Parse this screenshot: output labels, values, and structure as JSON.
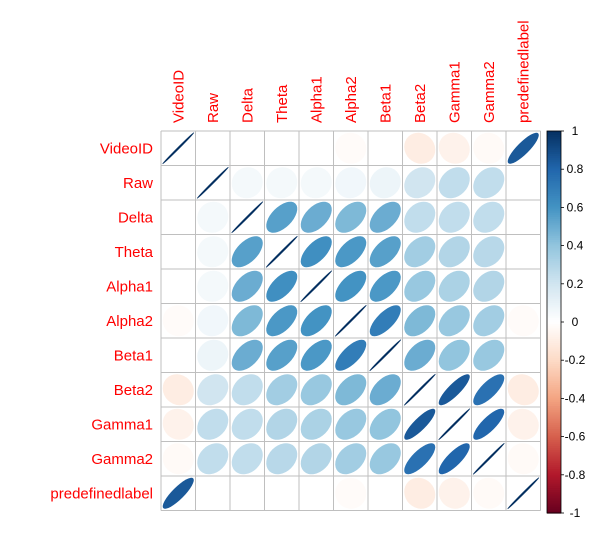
{
  "chart_data": {
    "type": "heatmap",
    "title": "",
    "variables": [
      "VideoID",
      "Raw",
      "Delta",
      "Theta",
      "Alpha1",
      "Alpha2",
      "Beta1",
      "Beta2",
      "Gamma1",
      "Gamma2",
      "predefinedlabel"
    ],
    "matrix": [
      [
        1.0,
        0.0,
        0.0,
        0.0,
        0.0,
        -0.02,
        0.0,
        -0.1,
        -0.07,
        -0.03,
        0.85
      ],
      [
        0.0,
        1.0,
        0.05,
        0.05,
        0.05,
        0.06,
        0.08,
        0.2,
        0.25,
        0.25,
        0.0
      ],
      [
        0.0,
        0.05,
        1.0,
        0.55,
        0.5,
        0.45,
        0.5,
        0.25,
        0.25,
        0.25,
        0.0
      ],
      [
        0.0,
        0.05,
        0.55,
        1.0,
        0.62,
        0.58,
        0.55,
        0.35,
        0.3,
        0.28,
        0.0
      ],
      [
        0.0,
        0.05,
        0.5,
        0.62,
        1.0,
        0.6,
        0.58,
        0.38,
        0.32,
        0.3,
        0.0
      ],
      [
        -0.02,
        0.06,
        0.45,
        0.58,
        0.6,
        1.0,
        0.7,
        0.45,
        0.38,
        0.35,
        -0.02
      ],
      [
        0.0,
        0.08,
        0.5,
        0.55,
        0.58,
        0.7,
        1.0,
        0.5,
        0.4,
        0.38,
        0.0
      ],
      [
        -0.1,
        0.2,
        0.25,
        0.35,
        0.38,
        0.45,
        0.5,
        1.0,
        0.85,
        0.75,
        -0.1
      ],
      [
        -0.07,
        0.25,
        0.25,
        0.3,
        0.32,
        0.38,
        0.4,
        0.85,
        1.0,
        0.8,
        -0.07
      ],
      [
        -0.03,
        0.25,
        0.25,
        0.28,
        0.3,
        0.35,
        0.38,
        0.75,
        0.8,
        1.0,
        -0.03
      ],
      [
        0.85,
        0.0,
        0.0,
        0.0,
        0.0,
        -0.02,
        0.0,
        -0.1,
        -0.07,
        -0.03,
        1.0
      ]
    ],
    "colorbar": {
      "ticks": [
        1,
        0.8,
        0.6,
        0.4,
        0.2,
        0,
        -0.2,
        -0.4,
        -0.6,
        -0.8,
        -1
      ],
      "range": [
        -1,
        1
      ]
    },
    "colors": {
      "label": "#ff0000",
      "grid": "#bfbfbf",
      "low": "#67001f",
      "mid": "#ffffff",
      "high": "#053061"
    }
  }
}
